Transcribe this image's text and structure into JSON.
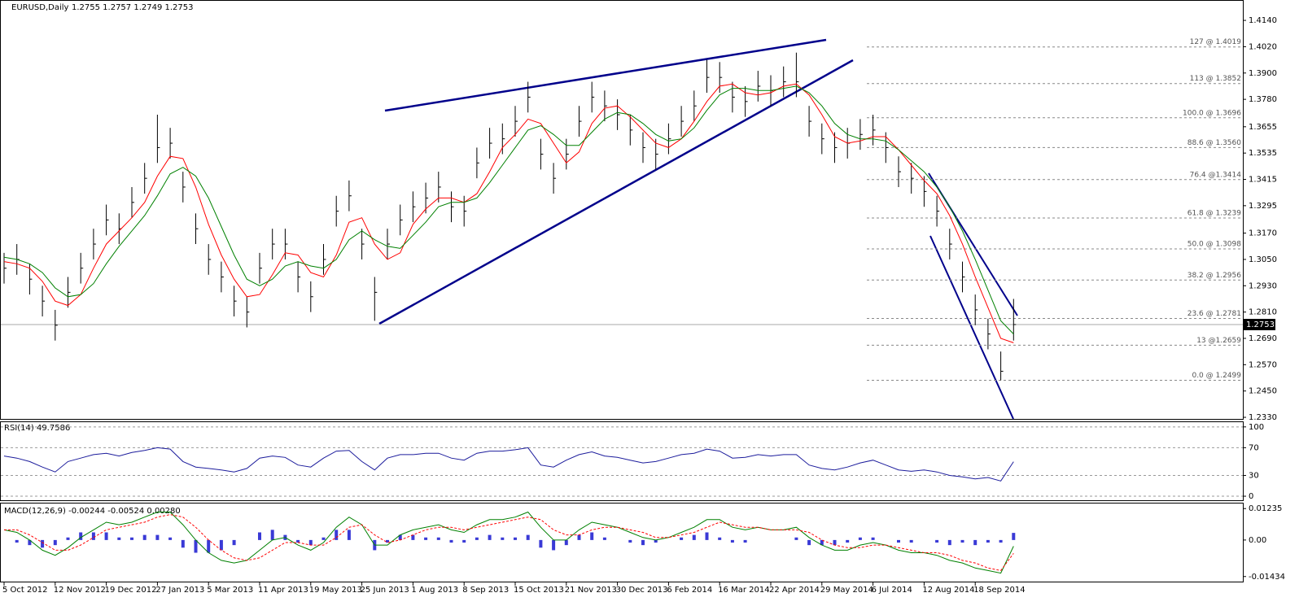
{
  "chart_data": [
    {
      "type": "ohlc",
      "title": "EURUSD,Daily",
      "subtitle": "1.2755 1.2757 1.2749 1.2753",
      "categories": [
        "5 Oct 2012",
        null,
        null,
        null,
        "12 Nov 2012",
        null,
        null,
        null,
        "19 Dec 2012",
        null,
        null,
        null,
        "27 Jan 2013",
        null,
        null,
        null,
        "5 Mar 2013",
        null,
        null,
        null,
        "11 Apr 2013",
        null,
        null,
        null,
        "19 May 2013",
        null,
        null,
        null,
        "25 Jun 2013",
        null,
        null,
        null,
        "1 Aug 2013",
        null,
        null,
        null,
        "8 Sep 2013",
        null,
        null,
        null,
        "15 Oct 2013",
        null,
        null,
        null,
        "21 Nov 2013",
        null,
        null,
        null,
        "30 Dec 2013",
        null,
        null,
        null,
        "6 Feb 2014",
        null,
        null,
        null,
        "16 Mar 2014",
        null,
        null,
        null,
        "22 Apr 2014",
        null,
        null,
        null,
        "29 May 2014",
        null,
        null,
        null,
        "6 Jul 2014",
        null,
        null,
        null,
        "12 Aug 2014",
        null,
        null,
        null,
        "18 Sep 2014",
        null,
        null,
        null
      ],
      "high": [
        1.308,
        1.312,
        1.303,
        1.293,
        1.282,
        1.297,
        1.308,
        1.319,
        1.33,
        1.326,
        1.338,
        1.349,
        1.371,
        1.365,
        1.345,
        1.326,
        1.312,
        1.304,
        1.293,
        1.288,
        1.308,
        1.319,
        1.319,
        1.304,
        1.295,
        1.312,
        1.334,
        1.341,
        1.319,
        1.297,
        1.319,
        1.33,
        1.336,
        1.34,
        1.345,
        1.336,
        1.334,
        1.356,
        1.365,
        1.367,
        1.375,
        1.386,
        1.36,
        1.349,
        1.36,
        1.375,
        1.386,
        1.382,
        1.378,
        1.371,
        1.363,
        1.36,
        1.367,
        1.375,
        1.382,
        1.396,
        1.395,
        1.386,
        1.384,
        1.391,
        1.389,
        1.393,
        1.3993,
        1.375,
        1.367,
        1.363,
        1.365,
        1.369,
        1.371,
        1.363,
        1.352,
        1.349,
        1.343,
        1.334,
        1.319,
        1.304,
        1.289,
        1.278,
        1.263,
        1.287
      ],
      "low": [
        1.294,
        1.298,
        1.289,
        1.279,
        1.268,
        1.283,
        1.294,
        1.305,
        1.316,
        1.312,
        1.324,
        1.335,
        1.349,
        1.351,
        1.331,
        1.312,
        1.298,
        1.29,
        1.279,
        1.274,
        1.294,
        1.305,
        1.305,
        1.29,
        1.281,
        1.298,
        1.32,
        1.327,
        1.305,
        1.277,
        1.305,
        1.316,
        1.322,
        1.326,
        1.331,
        1.322,
        1.32,
        1.342,
        1.351,
        1.353,
        1.361,
        1.372,
        1.346,
        1.335,
        1.346,
        1.361,
        1.372,
        1.368,
        1.364,
        1.357,
        1.349,
        1.346,
        1.353,
        1.361,
        1.368,
        1.381,
        1.381,
        1.372,
        1.37,
        1.377,
        1.375,
        1.379,
        1.379,
        1.361,
        1.353,
        1.349,
        1.351,
        1.355,
        1.357,
        1.349,
        1.338,
        1.335,
        1.329,
        1.32,
        1.305,
        1.29,
        1.275,
        1.264,
        1.2499,
        1.268
      ],
      "close": [
        1.301,
        1.305,
        1.296,
        1.286,
        1.275,
        1.29,
        1.301,
        1.312,
        1.323,
        1.319,
        1.331,
        1.342,
        1.356,
        1.358,
        1.338,
        1.319,
        1.305,
        1.297,
        1.286,
        1.281,
        1.301,
        1.312,
        1.312,
        1.297,
        1.288,
        1.305,
        1.327,
        1.334,
        1.312,
        1.29,
        1.312,
        1.323,
        1.329,
        1.333,
        1.338,
        1.329,
        1.327,
        1.349,
        1.358,
        1.36,
        1.368,
        1.379,
        1.353,
        1.342,
        1.353,
        1.368,
        1.379,
        1.375,
        1.371,
        1.364,
        1.356,
        1.353,
        1.36,
        1.368,
        1.375,
        1.388,
        1.388,
        1.379,
        1.377,
        1.384,
        1.382,
        1.386,
        1.386,
        1.368,
        1.36,
        1.356,
        1.358,
        1.362,
        1.364,
        1.356,
        1.345,
        1.342,
        1.336,
        1.327,
        1.312,
        1.297,
        1.282,
        1.271,
        1.254,
        1.2753
      ],
      "color": "#000000",
      "moving_averages": [
        {
          "color": "#ff0000",
          "values": [
            1.304,
            1.303,
            1.301,
            1.295,
            1.286,
            1.284,
            1.289,
            1.301,
            1.312,
            1.318,
            1.324,
            1.331,
            1.343,
            1.352,
            1.351,
            1.338,
            1.321,
            1.307,
            1.296,
            1.288,
            1.289,
            1.298,
            1.308,
            1.307,
            1.299,
            1.297,
            1.307,
            1.322,
            1.324,
            1.312,
            1.305,
            1.308,
            1.321,
            1.328,
            1.333,
            1.333,
            1.331,
            1.335,
            1.345,
            1.356,
            1.362,
            1.369,
            1.367,
            1.358,
            1.349,
            1.354,
            1.367,
            1.374,
            1.375,
            1.37,
            1.364,
            1.358,
            1.356,
            1.36,
            1.368,
            1.377,
            1.384,
            1.385,
            1.381,
            1.38,
            1.381,
            1.384,
            1.385,
            1.38,
            1.371,
            1.361,
            1.358,
            1.359,
            1.361,
            1.361,
            1.355,
            1.348,
            1.341,
            1.335,
            1.325,
            1.312,
            1.297,
            1.283,
            1.269,
            1.267
          ]
        },
        {
          "color": "#008000",
          "values": [
            1.306,
            1.305,
            1.303,
            1.299,
            1.292,
            1.288,
            1.289,
            1.294,
            1.303,
            1.311,
            1.318,
            1.325,
            1.334,
            1.344,
            1.347,
            1.343,
            1.333,
            1.32,
            1.307,
            1.296,
            1.293,
            1.296,
            1.302,
            1.304,
            1.302,
            1.301,
            1.305,
            1.314,
            1.318,
            1.314,
            1.311,
            1.31,
            1.316,
            1.322,
            1.329,
            1.331,
            1.331,
            1.333,
            1.34,
            1.348,
            1.356,
            1.364,
            1.366,
            1.362,
            1.357,
            1.357,
            1.363,
            1.369,
            1.372,
            1.371,
            1.367,
            1.362,
            1.359,
            1.36,
            1.365,
            1.373,
            1.38,
            1.383,
            1.383,
            1.382,
            1.382,
            1.383,
            1.384,
            1.381,
            1.375,
            1.367,
            1.362,
            1.36,
            1.36,
            1.359,
            1.355,
            1.35,
            1.345,
            1.338,
            1.329,
            1.318,
            1.305,
            1.291,
            1.277,
            1.271
          ]
        }
      ],
      "fib_levels": [
        {
          "value": 1.4019,
          "label": "127 @ 1.4019"
        },
        {
          "value": 1.3852,
          "label": "113 @ 1.3852"
        },
        {
          "value": 1.3696,
          "label": "100.0 @ 1.3696"
        },
        {
          "value": 1.356,
          "label": "88.6 @ 1.3560"
        },
        {
          "value": 1.3414,
          "label": "76.4 @1.3414"
        },
        {
          "value": 1.3239,
          "label": "61.8 @ 1.3239"
        },
        {
          "value": 1.3098,
          "label": "50.0 @ 1.3098"
        },
        {
          "value": 1.2956,
          "label": "38.2 @ 1.2956"
        },
        {
          "value": 1.2781,
          "label": "23.6 @ 1.2781"
        },
        {
          "value": 1.2659,
          "label": "13 @1.2659"
        },
        {
          "value": 1.2499,
          "label": "0.0 @ 1.2499"
        }
      ],
      "last_price": {
        "value": 1.2753,
        "label": "1.2753"
      },
      "ylim": [
        1.2319,
        1.4233
      ],
      "yticks": [
        {
          "value": 1.414,
          "label": "1.4140"
        },
        {
          "value": 1.402,
          "label": "1.4020"
        },
        {
          "value": 1.39,
          "label": "1.3900"
        },
        {
          "value": 1.378,
          "label": "1.3780"
        },
        1.3655,
        1.3535,
        1.3415,
        1.3295,
        {
          "value": 1.317,
          "label": "1.3170"
        },
        {
          "value": 1.305,
          "label": "1.3050"
        },
        {
          "value": 1.293,
          "label": "1.2930"
        },
        {
          "value": 1.281,
          "label": "1.2810"
        },
        {
          "value": 1.269,
          "label": "1.2690"
        },
        {
          "value": 1.257,
          "label": "1.2570"
        },
        {
          "value": 1.245,
          "label": "1.2450"
        },
        {
          "value": 1.233,
          "label": "1.2330"
        }
      ],
      "grid": false
    },
    {
      "type": "line",
      "title": "RSI(14) 49.7586",
      "color": "#1c1c9c",
      "values": [
        58,
        55,
        50,
        42,
        35,
        50,
        55,
        60,
        62,
        58,
        63,
        66,
        70,
        68,
        50,
        42,
        40,
        38,
        35,
        40,
        55,
        58,
        56,
        45,
        42,
        55,
        65,
        66,
        50,
        38,
        55,
        60,
        60,
        62,
        62,
        55,
        52,
        62,
        65,
        65,
        67,
        70,
        45,
        42,
        52,
        60,
        64,
        58,
        56,
        52,
        48,
        50,
        55,
        60,
        62,
        68,
        65,
        55,
        56,
        60,
        58,
        60,
        60,
        45,
        40,
        38,
        42,
        48,
        52,
        45,
        38,
        36,
        38,
        35,
        30,
        28,
        25,
        27,
        22,
        49.7586
      ],
      "ylim": [
        -7,
        108
      ],
      "yticks": [
        100,
        70,
        30,
        0
      ],
      "grid": true
    },
    {
      "type": "macd",
      "title": "MACD(12,26,9) -0.00244 -0.00524 0.00280",
      "histogram": {
        "color": "#3a3ad6",
        "values": [
          0,
          -0.001,
          -0.002,
          -0.003,
          -0.002,
          0.001,
          0.003,
          0.003,
          0.003,
          0.001,
          0.001,
          0.002,
          0.002,
          0.001,
          -0.003,
          -0.005,
          -0.005,
          -0.004,
          -0.002,
          0,
          0.003,
          0.004,
          0.002,
          -0.001,
          -0.002,
          0.001,
          0.004,
          0.004,
          0,
          -0.004,
          -0.001,
          0.002,
          0.002,
          0.001,
          0.001,
          -0.001,
          -0.001,
          0.001,
          0.002,
          0.001,
          0.001,
          0.002,
          -0.003,
          -0.004,
          -0.002,
          0.002,
          0.003,
          0.001,
          0,
          -0.001,
          -0.002,
          -0.001,
          0,
          0.001,
          0.002,
          0.003,
          0.001,
          -0.001,
          -0.001,
          0,
          0,
          0,
          0.001,
          -0.002,
          -0.002,
          -0.002,
          -0.001,
          0.001,
          0.001,
          0,
          -0.001,
          -0.001,
          0,
          -0.001,
          -0.002,
          -0.001,
          -0.002,
          -0.001,
          -0.001,
          0.0028
        ]
      },
      "main": {
        "color": "#008000",
        "values": [
          0.004,
          0.003,
          0.0,
          -0.004,
          -0.006,
          -0.003,
          0.001,
          0.004,
          0.007,
          0.006,
          0.007,
          0.009,
          0.011,
          0.011,
          0.006,
          0.0,
          -0.005,
          -0.008,
          -0.009,
          -0.008,
          -0.004,
          0.0,
          0.001,
          -0.002,
          -0.004,
          -0.001,
          0.005,
          0.009,
          0.006,
          -0.002,
          -0.002,
          0.002,
          0.004,
          0.005,
          0.006,
          0.004,
          0.003,
          0.006,
          0.008,
          0.008,
          0.009,
          0.011,
          0.005,
          0.0,
          0.0,
          0.004,
          0.007,
          0.006,
          0.005,
          0.003,
          0.001,
          0.0,
          0.001,
          0.003,
          0.005,
          0.008,
          0.008,
          0.005,
          0.004,
          0.005,
          0.004,
          0.004,
          0.005,
          0.001,
          -0.002,
          -0.004,
          -0.004,
          -0.002,
          -0.001,
          -0.002,
          -0.004,
          -0.005,
          -0.005,
          -0.006,
          -0.008,
          -0.009,
          -0.011,
          -0.012,
          -0.013,
          -0.00244
        ]
      },
      "signal": {
        "color": "#ff0000",
        "values": [
          0.004,
          0.004,
          0.002,
          -0.001,
          -0.004,
          -0.004,
          -0.002,
          0.001,
          0.004,
          0.005,
          0.006,
          0.007,
          0.009,
          0.01,
          0.009,
          0.005,
          0.0,
          -0.004,
          -0.007,
          -0.008,
          -0.007,
          -0.004,
          -0.001,
          -0.001,
          -0.002,
          -0.002,
          0.001,
          0.005,
          0.006,
          0.002,
          -0.001,
          0.0,
          0.002,
          0.004,
          0.005,
          0.005,
          0.004,
          0.005,
          0.006,
          0.007,
          0.008,
          0.009,
          0.008,
          0.004,
          0.002,
          0.002,
          0.004,
          0.005,
          0.005,
          0.004,
          0.003,
          0.001,
          0.001,
          0.002,
          0.003,
          0.005,
          0.007,
          0.006,
          0.005,
          0.005,
          0.004,
          0.004,
          0.004,
          0.003,
          0.0,
          -0.002,
          -0.003,
          -0.003,
          -0.002,
          -0.002,
          -0.003,
          -0.004,
          -0.005,
          -0.005,
          -0.006,
          -0.008,
          -0.009,
          -0.011,
          -0.012,
          -0.00524
        ]
      },
      "ylim": [
        -0.01665,
        0.01466
      ],
      "yticks": [
        0.01235,
        {
          "value": 0,
          "label": "0.00"
        },
        -0.01434
      ],
      "grid": false
    }
  ]
}
